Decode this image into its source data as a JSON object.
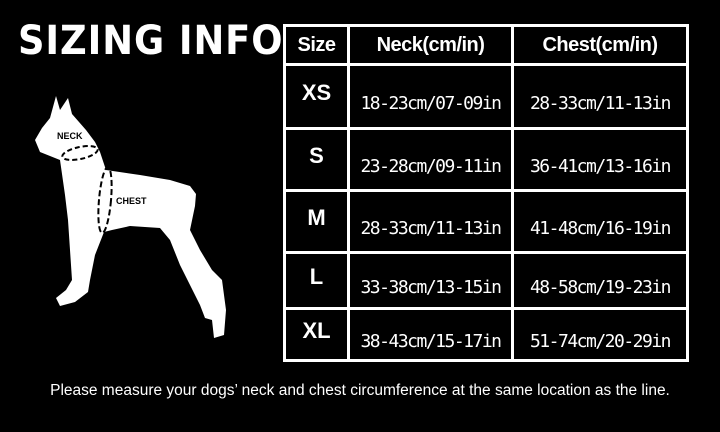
{
  "title": "SIZING INFO",
  "diagram": {
    "neck_label": "NECK",
    "chest_label": "CHEST"
  },
  "table": {
    "headers": [
      "Size",
      "Neck(cm/in)",
      "Chest(cm/in)"
    ],
    "rows": [
      {
        "size": "XS",
        "neck": "18-23cm/07-09in",
        "chest": "28-33cm/11-13in"
      },
      {
        "size": "S",
        "neck": "23-28cm/09-11in",
        "chest": "36-41cm/13-16in"
      },
      {
        "size": "M",
        "neck": "28-33cm/11-13in",
        "chest": "41-48cm/16-19in"
      },
      {
        "size": "L",
        "neck": "33-38cm/13-15in",
        "chest": "48-58cm/19-23in"
      },
      {
        "size": "XL",
        "neck": "38-43cm/15-17in",
        "chest": "51-74cm/20-29in"
      }
    ]
  },
  "note": "Please measure your dogs’  neck and chest circumference at the same location as the line."
}
